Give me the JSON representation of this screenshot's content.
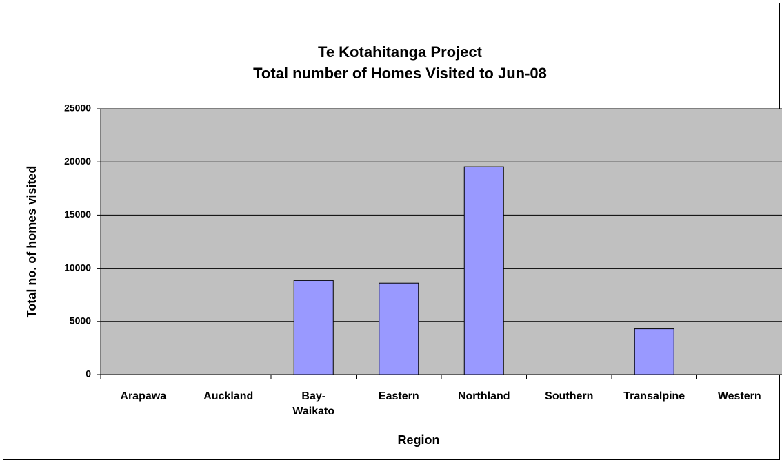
{
  "chart_data": {
    "type": "bar",
    "title": "Te Kotahitanga Project",
    "subtitle": "Total number of Homes Visited to Jun-08",
    "x_label": "Region",
    "y_label": "Total no. of homes visited",
    "categories": [
      "Arapawa",
      "Auckland",
      "Bay-Waikato",
      "Eastern",
      "Northland",
      "Southern",
      "Transalpine",
      "Western"
    ],
    "values": [
      0,
      0,
      8850,
      8600,
      19550,
      0,
      4300,
      0
    ],
    "color": "#9999ff",
    "plot_background": "#c0c0c0",
    "ylim": [
      0,
      25000
    ],
    "yticks": [
      0,
      5000,
      10000,
      15000,
      20000,
      25000
    ],
    "grid": true
  }
}
